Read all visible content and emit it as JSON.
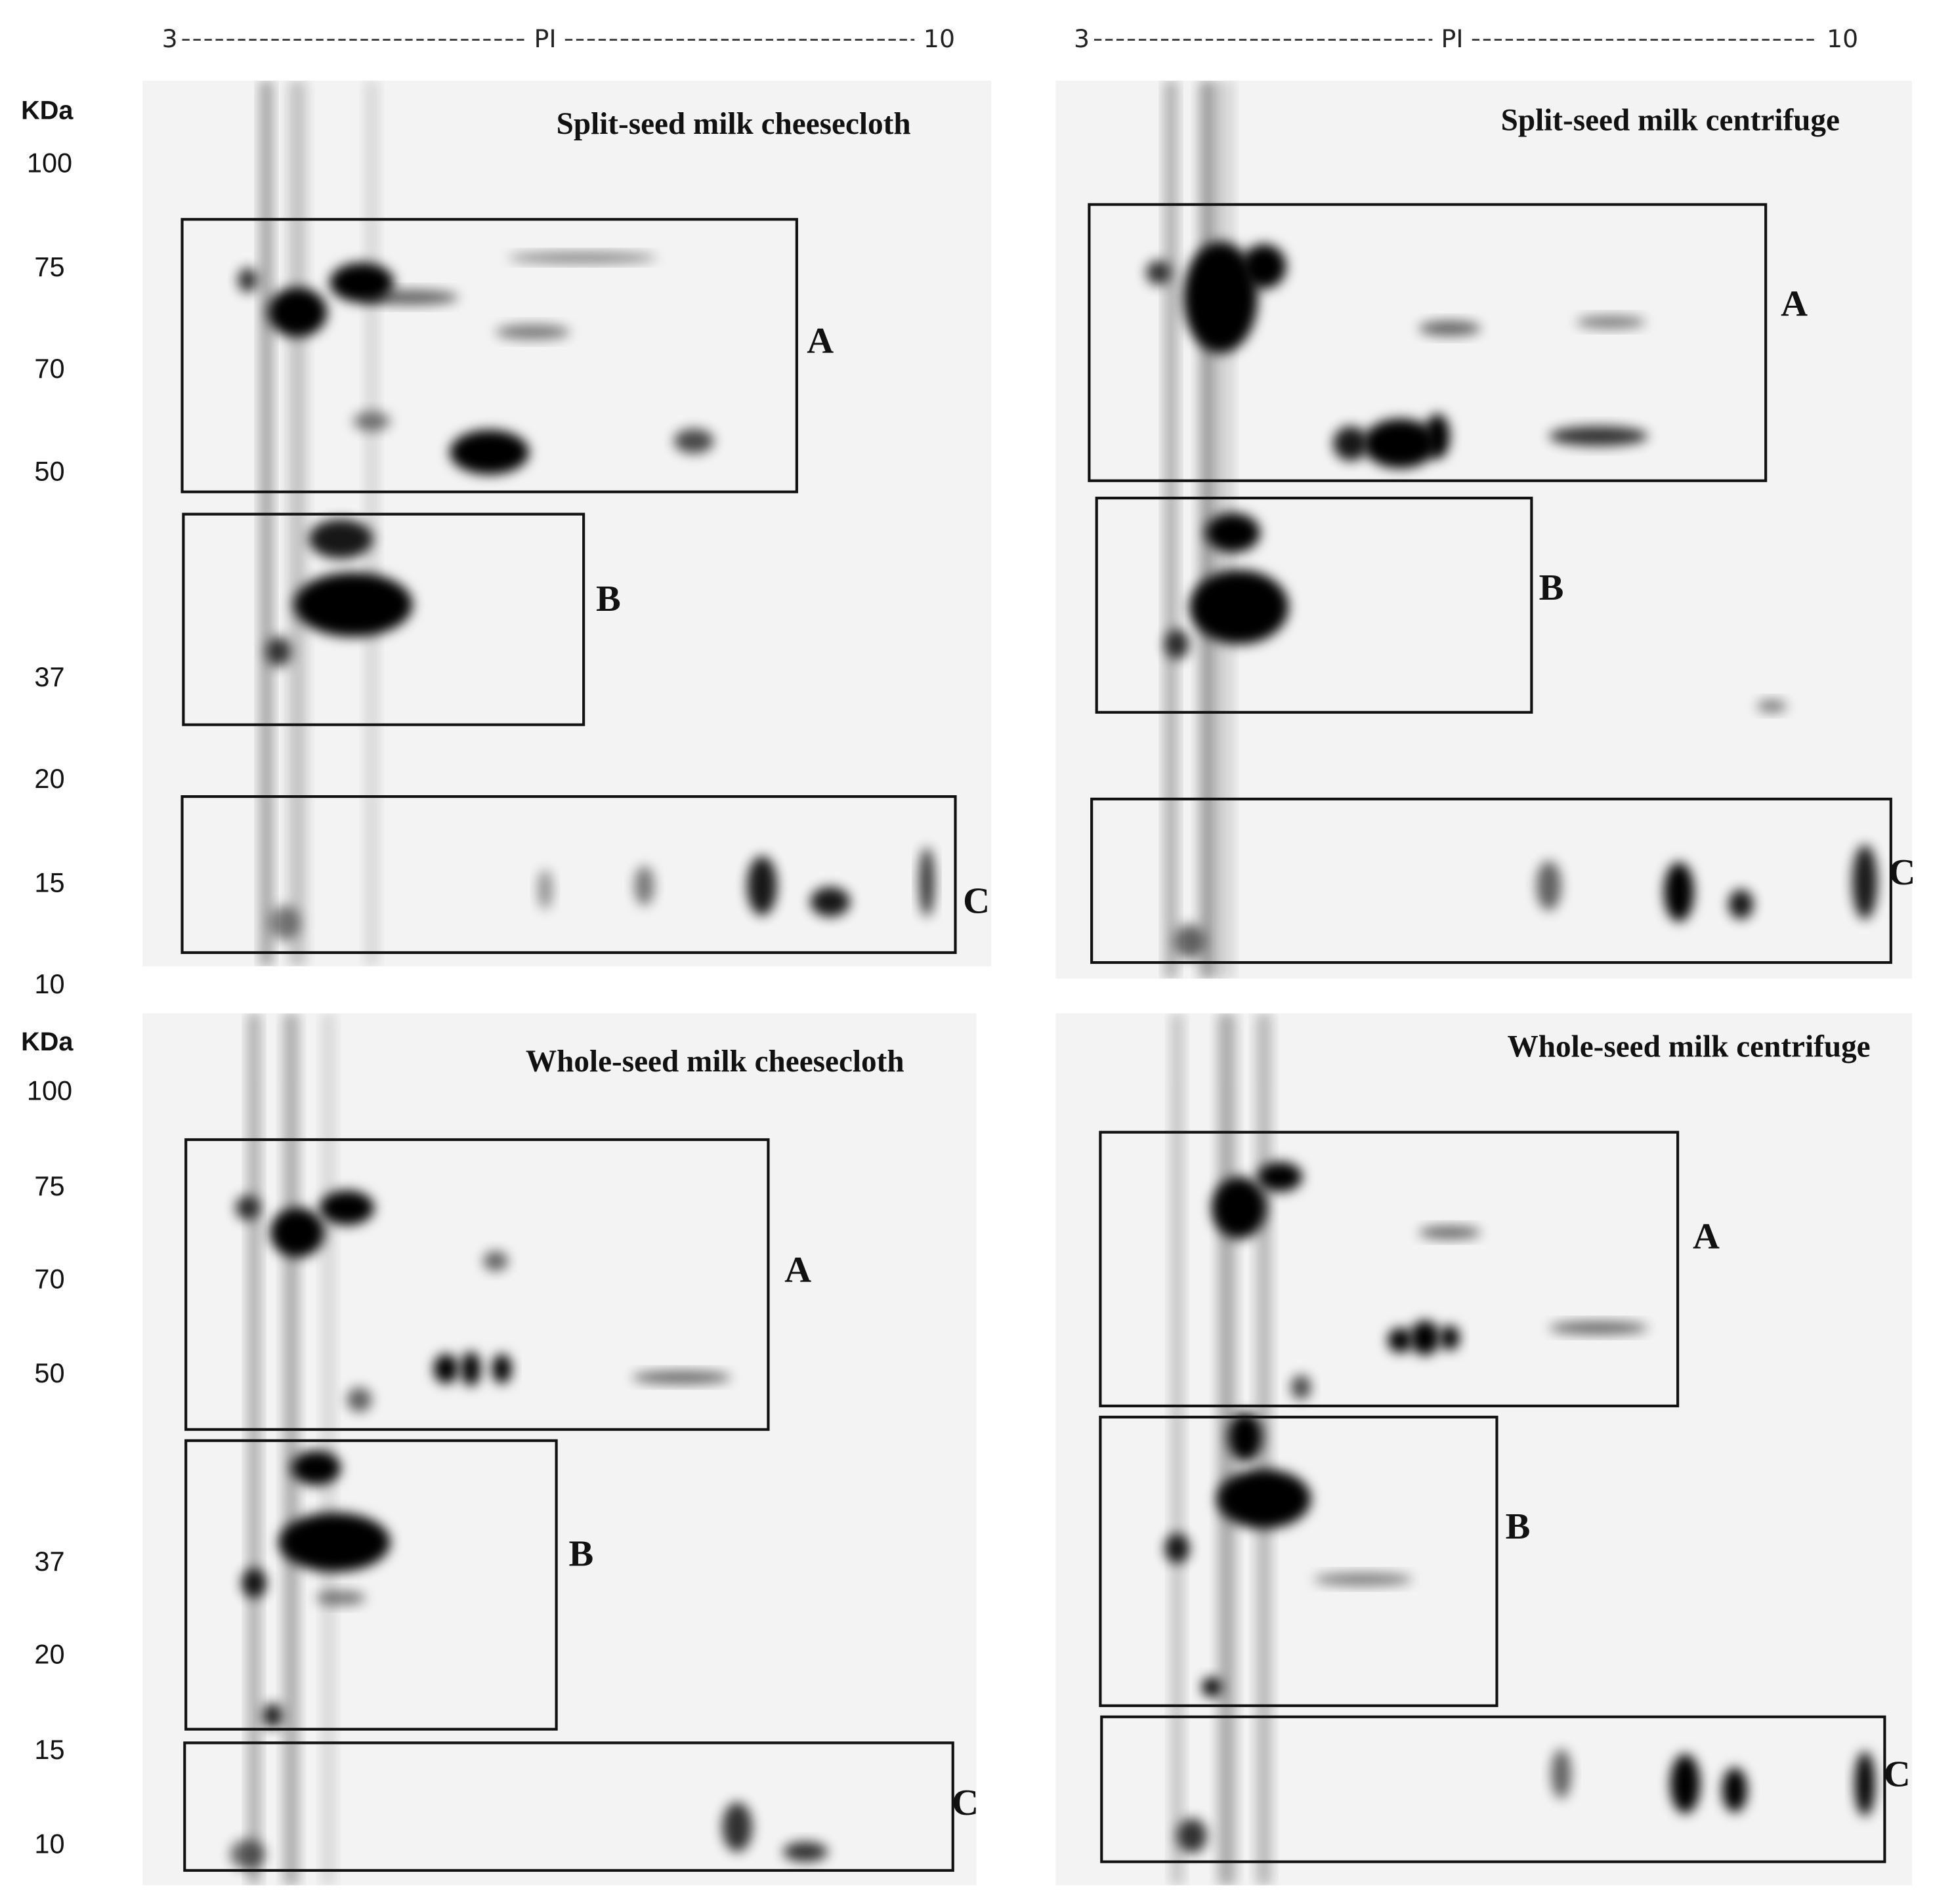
{
  "pi_axes": [
    {
      "start": "3",
      "mid": "PI",
      "end": "10"
    },
    {
      "start": "3",
      "mid": "PI",
      "end": "10"
    }
  ],
  "kda_scales": [
    {
      "unit": "KDa",
      "labels": [
        "100",
        "75",
        "70",
        "50",
        "37",
        "20",
        "15",
        "10"
      ]
    },
    {
      "unit": "KDa",
      "labels": [
        "100",
        "75",
        "70",
        "50",
        "37",
        "20",
        "15",
        "10"
      ]
    }
  ],
  "panels": [
    {
      "title": "Split-seed milk cheesecloth",
      "boxes": [
        "A",
        "B",
        "C"
      ]
    },
    {
      "title": "Split-seed milk centrifuge",
      "boxes": [
        "A",
        "B",
        "C"
      ]
    },
    {
      "title": "Whole-seed milk cheesecloth",
      "boxes": [
        "A",
        "B",
        "C"
      ]
    },
    {
      "title": "Whole-seed milk centrifuge",
      "boxes": [
        "A",
        "B",
        "C"
      ]
    }
  ]
}
